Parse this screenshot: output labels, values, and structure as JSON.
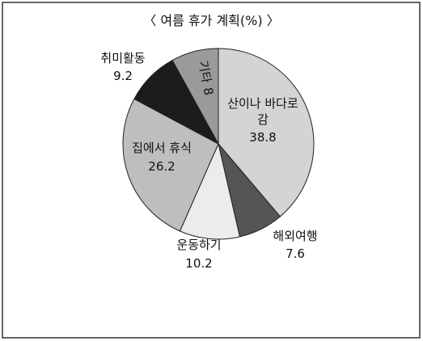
{
  "chart_data": {
    "type": "pie",
    "title": "〈 여름 휴가 계획(%) 〉",
    "categories": [
      "산이나 바다로 감",
      "해외여행",
      "운동하기",
      "집에서 휴식",
      "취미활동",
      "기타"
    ],
    "values": [
      38.8,
      7.6,
      10.2,
      26.2,
      9.2,
      8
    ],
    "colors": [
      "#d4d4d4",
      "#555555",
      "#ececec",
      "#bebebe",
      "#1c1c1c",
      "#9a9a9a"
    ]
  }
}
